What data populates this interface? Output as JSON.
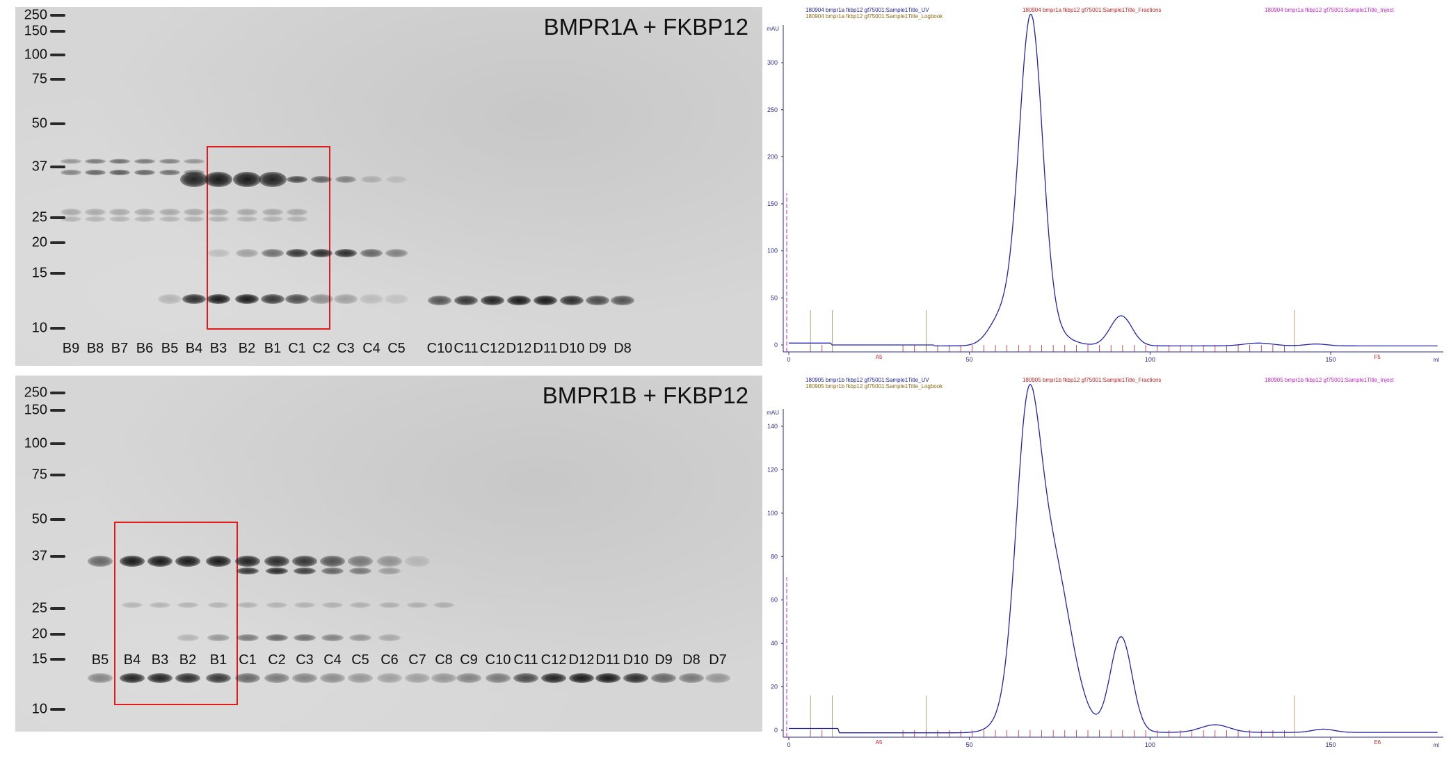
{
  "top_gel": {
    "title": "BMPR1A + FKBP12",
    "markers": [
      "250",
      "150",
      "100",
      "75",
      "50",
      "37",
      "25",
      "20",
      "15",
      "10"
    ],
    "lanes": [
      "B9",
      "B8",
      "B7",
      "B6",
      "B5",
      "B4",
      "B3",
      "B2",
      "B1",
      "C1",
      "C2",
      "C3",
      "C4",
      "C5",
      "C10",
      "C11",
      "C12",
      "D12",
      "D11",
      "D10",
      "D9",
      "D8"
    ]
  },
  "bottom_gel": {
    "title": "BMPR1B + FKBP12",
    "markers": [
      "250",
      "150",
      "100",
      "75",
      "50",
      "37",
      "25",
      "20",
      "15",
      "10"
    ],
    "lanes": [
      "B5",
      "B4",
      "B3",
      "B2",
      "B1",
      "C1",
      "C2",
      "C3",
      "C4",
      "C5",
      "C6",
      "C7",
      "C8",
      "C9",
      "C10",
      "C11",
      "C12",
      "D12",
      "D11",
      "D10",
      "D9",
      "D8",
      "D7"
    ]
  },
  "top_chromatogram": {
    "legend": {
      "uv": "180904 bmpr1a fkbp12 gf75001:Sample1Title_UV",
      "fractions": "180904 bmpr1a fkbp12 gf75001:Sample1Title_Fractions",
      "inject": "180904 bmpr1a fkbp12 gf75001:Sample1Title_Inject",
      "logbook": "180904 bmpr1a fkbp12 gf75001:Sample1Title_Logbook"
    },
    "y_unit": "mAU",
    "x_unit": "ml",
    "y_ticks": [
      "0",
      "50",
      "100",
      "150",
      "200",
      "250",
      "300"
    ],
    "x_ticks": [
      "0",
      "50",
      "100",
      "150"
    ],
    "fraction_start": "A5",
    "fraction_end": "F5",
    "colors": {
      "uv": "#2222aa",
      "fractions": "#cc2222",
      "inject": "#cc22cc",
      "logbook": "#8a6a1a",
      "axis": "#2a2a8a"
    }
  },
  "bottom_chromatogram": {
    "legend": {
      "uv": "180905 bmpr1b fkbp12 gf75001:Sample1Title_UV",
      "fractions": "180905 bmpr1b fkbp12 gf75001:Sample1Title_Fractions",
      "inject": "180905 bmpr1b fkbp12 gf75001:Sample1Title_Inject",
      "logbook": "180905 bmpr1b fkbp12 gf75001:Sample1Title_Logbook"
    },
    "y_unit": "mAU",
    "x_unit": "ml",
    "y_ticks": [
      "0",
      "20",
      "40",
      "60",
      "80",
      "100",
      "120",
      "140"
    ],
    "x_ticks": [
      "0",
      "50",
      "100",
      "150"
    ],
    "fraction_start": "A5",
    "fraction_end": "E6",
    "colors": {
      "uv": "#2222aa",
      "fractions": "#cc2222",
      "inject": "#cc22cc",
      "logbook": "#8a6a1a",
      "axis": "#2a2a8a"
    }
  }
}
